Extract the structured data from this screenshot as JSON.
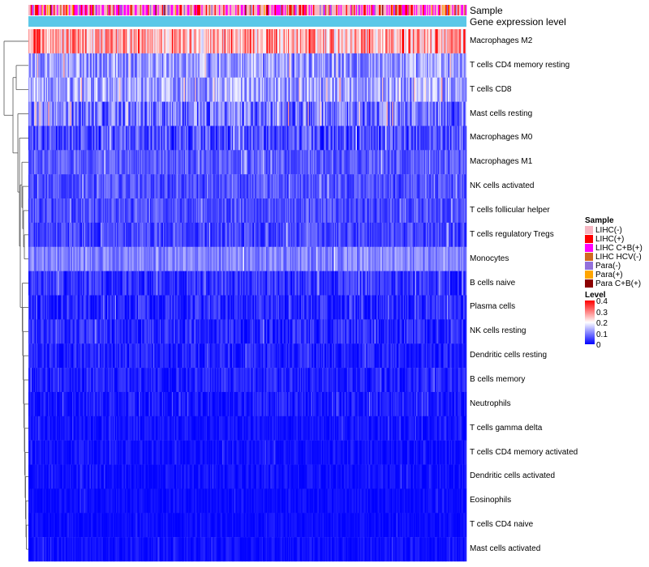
{
  "annotations": {
    "sample_label": "Sample",
    "gene_label": "Gene expression level"
  },
  "legend": {
    "sample_title": "Sample",
    "sample_items": [
      {
        "label": "LIHC(-)",
        "color": "#f7b6c2"
      },
      {
        "label": "LIHC(+)",
        "color": "#ff0000"
      },
      {
        "label": "LIHC C+B(+)",
        "color": "#ff00ff"
      },
      {
        "label": "LIHC HCV(-)",
        "color": "#d2691e"
      },
      {
        "label": "Para(-)",
        "color": "#9370db"
      },
      {
        "label": "Para(+)",
        "color": "#ffa500"
      },
      {
        "label": "Para C+B(+)",
        "color": "#8b0000"
      }
    ],
    "level_title": "Level",
    "level_ticks": [
      "0.4",
      "0.3",
      "0.2",
      "0.1",
      "0"
    ]
  },
  "colors": {
    "low": "#0000ff",
    "mid": "#ffffff",
    "high": "#ff0000",
    "gene_bar": "#5bc8e8"
  },
  "chart_data": {
    "type": "heatmap",
    "title": "",
    "row_annotation_labels": [
      "Sample",
      "Gene expression level"
    ],
    "value_range": [
      0,
      0.4
    ],
    "colorscale": [
      "#0000ff",
      "#ffffff",
      "#ff0000"
    ],
    "rows": [
      {
        "name": "Macrophages M2",
        "mean": 0.26,
        "spread": 0.1
      },
      {
        "name": "T cells CD4 memory resting",
        "mean": 0.12,
        "spread": 0.07
      },
      {
        "name": "T cells CD8",
        "mean": 0.13,
        "spread": 0.07
      },
      {
        "name": "Mast cells resting",
        "mean": 0.09,
        "spread": 0.08
      },
      {
        "name": "Macrophages M0",
        "mean": 0.06,
        "spread": 0.06
      },
      {
        "name": "Macrophages M1",
        "mean": 0.07,
        "spread": 0.04
      },
      {
        "name": "NK cells activated",
        "mean": 0.06,
        "spread": 0.04
      },
      {
        "name": "T cells follicular helper",
        "mean": 0.06,
        "spread": 0.04
      },
      {
        "name": "T cells regulatory  Tregs",
        "mean": 0.05,
        "spread": 0.04
      },
      {
        "name": "Monocytes",
        "mean": 0.1,
        "spread": 0.04
      },
      {
        "name": "B cells naive",
        "mean": 0.04,
        "spread": 0.04
      },
      {
        "name": "Plasma cells",
        "mean": 0.03,
        "spread": 0.04
      },
      {
        "name": "NK cells resting",
        "mean": 0.03,
        "spread": 0.04
      },
      {
        "name": "Dendritic cells resting",
        "mean": 0.025,
        "spread": 0.03
      },
      {
        "name": "B cells memory",
        "mean": 0.025,
        "spread": 0.03
      },
      {
        "name": "Neutrophils",
        "mean": 0.02,
        "spread": 0.03
      },
      {
        "name": "T cells gamma delta",
        "mean": 0.012,
        "spread": 0.02
      },
      {
        "name": "T cells CD4 memory activated",
        "mean": 0.012,
        "spread": 0.02
      },
      {
        "name": "Dendritic cells activated",
        "mean": 0.01,
        "spread": 0.02
      },
      {
        "name": "Eosinophils",
        "mean": 0.008,
        "spread": 0.015
      },
      {
        "name": "T cells CD4 naive",
        "mean": 0.008,
        "spread": 0.015
      },
      {
        "name": "Mast cells activated",
        "mean": 0.01,
        "spread": 0.02
      }
    ],
    "sample_groups": [
      "LIHC(-)",
      "LIHC(+)",
      "LIHC C+B(+)",
      "LIHC HCV(-)",
      "Para(-)",
      "Para(+)",
      "Para C+B(+)"
    ],
    "n_samples": 400,
    "dendrogram": "rows clustered (hierarchical)"
  }
}
